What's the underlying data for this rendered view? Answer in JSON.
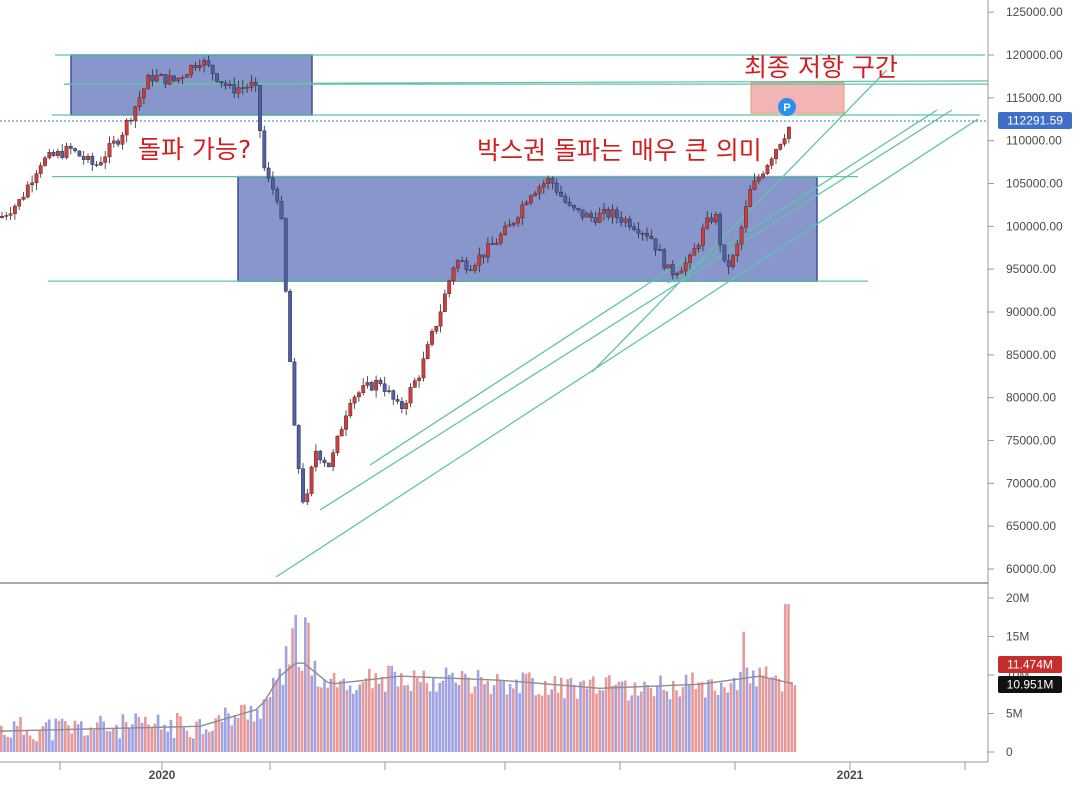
{
  "chart_data": [
    {
      "type": "candlestick",
      "yaxis": {
        "ticks": [
          60000,
          65000,
          70000,
          75000,
          80000,
          85000,
          90000,
          95000,
          100000,
          105000,
          110000,
          115000,
          120000,
          125000
        ],
        "tick_labels": [
          "60000.00",
          "65000.00",
          "70000.00",
          "75000.00",
          "80000.00",
          "85000.00",
          "90000.00",
          "95000.00",
          "100000.00",
          "105000.00",
          "110000.00",
          "115000.00",
          "120000.00",
          "125000.00"
        ],
        "position": "right"
      },
      "xaxis": {
        "labels": [
          "2020",
          "2021"
        ]
      },
      "last_price": 112291.59,
      "last_price_label": "112291.59",
      "price_marker": "P",
      "annotations": [
        "최종 저항 구간",
        "돌파 가능?",
        "박스권 돌파는 매우 큰 의미"
      ],
      "horizontal_levels": [
        120000,
        116600,
        113000,
        105800,
        93600
      ],
      "boxes": [
        {
          "name": "upper-resistance-box",
          "from": "2019-12",
          "to": "2020-02",
          "low": 113000,
          "high": 120000
        },
        {
          "name": "range-box",
          "from": "2020-02",
          "to": "2020-12",
          "low": 93600,
          "high": 105800
        },
        {
          "name": "final-resistance-zone",
          "from": "2020-11",
          "to": "2020-12",
          "low": 113200,
          "high": 116800
        }
      ],
      "trendlines": "3 ascending support lines from the March 2020 low",
      "colors": {
        "up": "#d23b3b",
        "down": "#4e5ea8",
        "box": "#5a6db8",
        "zone": "#f0a7a7",
        "lines": "#5ec4a8",
        "price_tag": "#3f6fc7"
      }
    },
    {
      "type": "bar",
      "name": "volume",
      "yaxis": {
        "ticks": [
          0,
          5,
          10,
          15,
          20
        ],
        "tick_labels": [
          "0",
          "5M",
          "10M",
          "15M",
          "20M"
        ]
      },
      "moving_average_label": "10.951M",
      "last_volume_label": "11.474M",
      "colors": {
        "up": "#e69a9a",
        "down": "#9fa3e3",
        "ma": "#8e8e8e",
        "last_tag": "#c62d2d",
        "ma_tag": "#111111"
      }
    }
  ]
}
